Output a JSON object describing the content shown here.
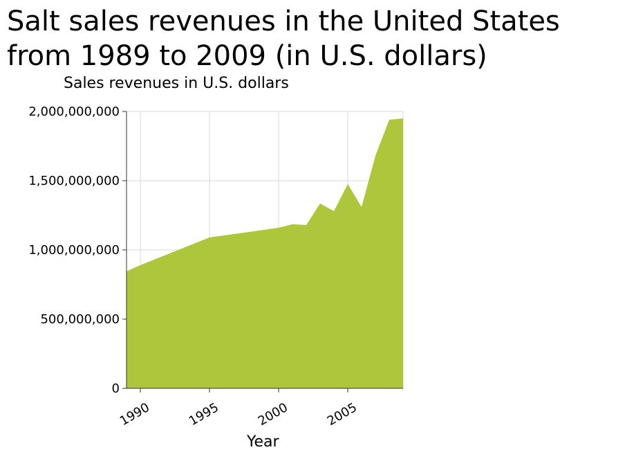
{
  "chart_data": {
    "type": "area",
    "title": "Salt sales revenues in the United States from 1989 to 2009 (in U.S. dollars)",
    "xlabel": "Year",
    "ylabel": "Sales revenues in U.S. dollars",
    "xlim": [
      1989,
      2009
    ],
    "ylim": [
      0,
      2000000000
    ],
    "grid": true,
    "color": "#aec63c",
    "x_ticks": [
      1990,
      1995,
      2000,
      2005
    ],
    "x_tick_labels": [
      "1990",
      "1995",
      "2000",
      "2005"
    ],
    "y_ticks": [
      0,
      500000000,
      1000000000,
      1500000000,
      2000000000
    ],
    "y_tick_labels": [
      "0",
      "500,000,000",
      "1,000,000,000",
      "1,500,000,000",
      "2,000,000,000"
    ],
    "x": [
      1989,
      1990,
      1995,
      2000,
      2001,
      2002,
      2003,
      2004,
      2005,
      2006,
      2007,
      2008,
      2009
    ],
    "values": [
      845000000,
      890000000,
      1090000000,
      1160000000,
      1185000000,
      1180000000,
      1335000000,
      1280000000,
      1475000000,
      1310000000,
      1680000000,
      1940000000,
      1950000000
    ]
  }
}
